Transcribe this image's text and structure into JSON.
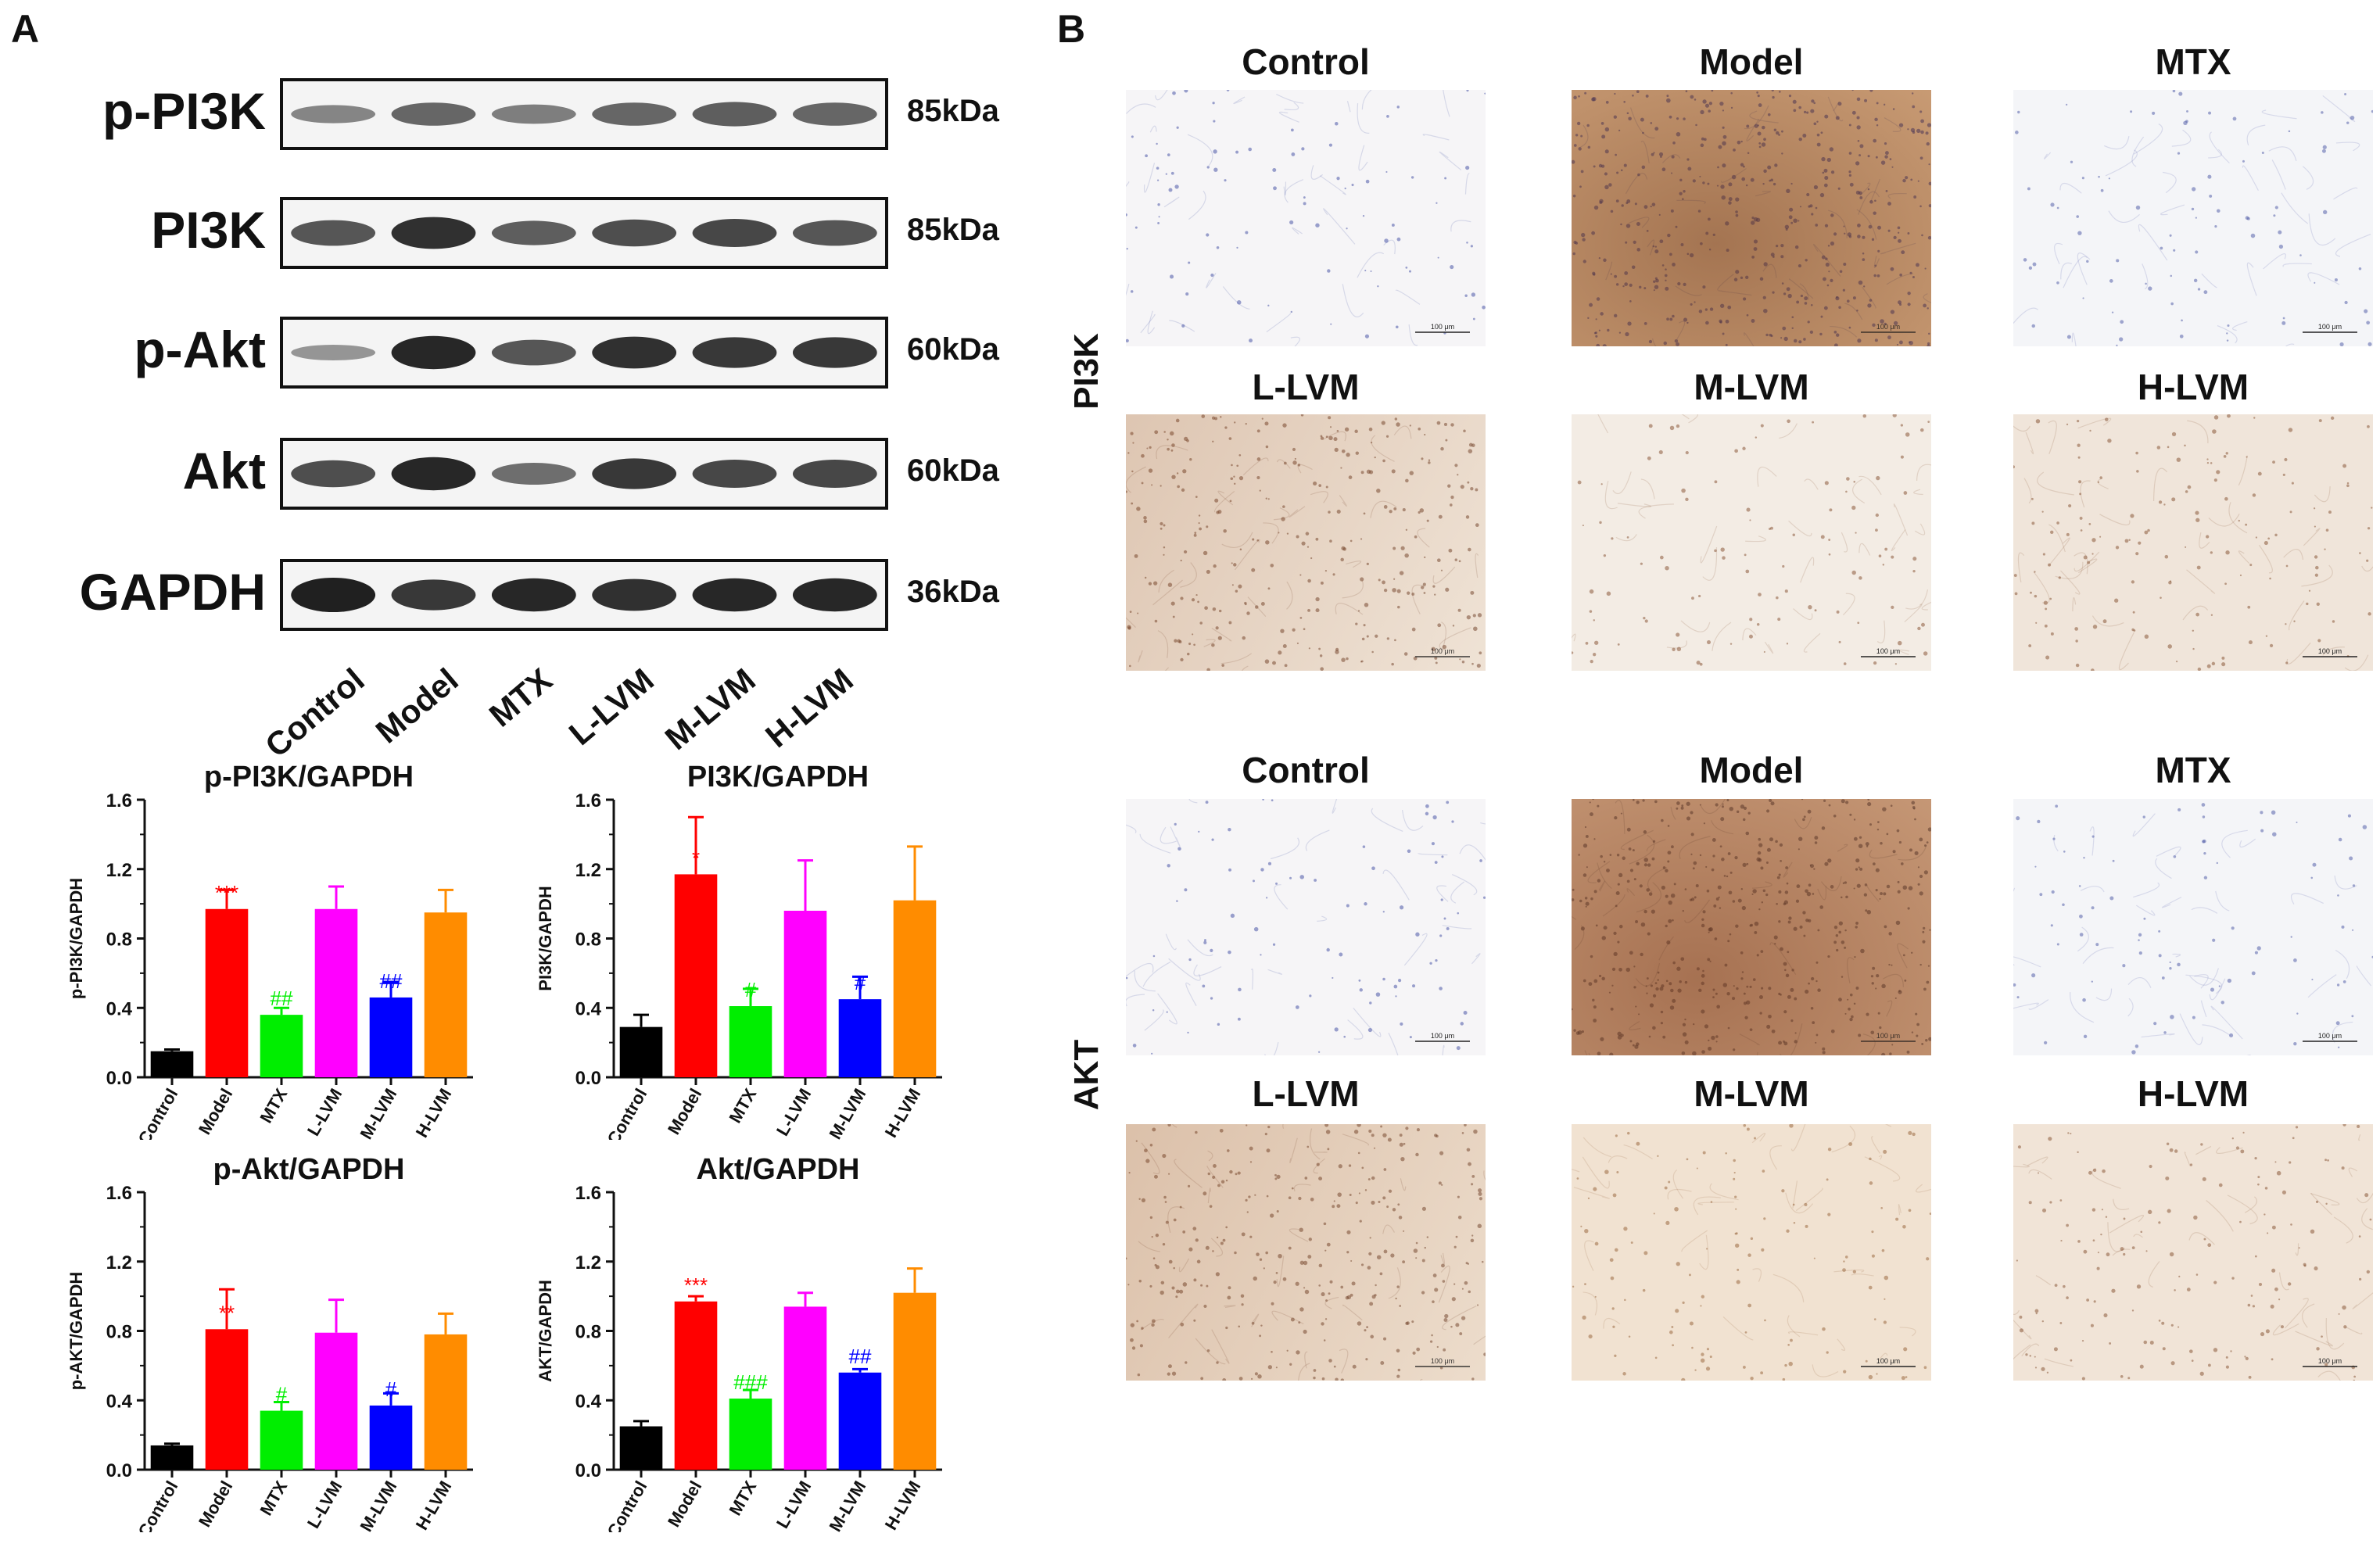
{
  "panel_a": {
    "letter": "A",
    "blots": [
      {
        "label": "p-PI3K",
        "kda": "85kDa",
        "intensity": [
          0.35,
          0.55,
          0.4,
          0.55,
          0.6,
          0.55
        ]
      },
      {
        "label": "PI3K",
        "kda": "85kDa",
        "intensity": [
          0.65,
          0.9,
          0.6,
          0.7,
          0.75,
          0.65
        ]
      },
      {
        "label": "p-Akt",
        "kda": "60kDa",
        "intensity": [
          0.25,
          0.95,
          0.65,
          0.9,
          0.85,
          0.85
        ]
      },
      {
        "label": "Akt",
        "kda": "60kDa",
        "intensity": [
          0.7,
          0.95,
          0.5,
          0.85,
          0.75,
          0.75
        ]
      },
      {
        "label": "GAPDH",
        "kda": "36kDa",
        "intensity": [
          1.0,
          0.85,
          0.95,
          0.9,
          0.95,
          0.95
        ]
      }
    ],
    "lanes": [
      "Control",
      "Model",
      "MTX",
      "L-LVM",
      "M-LVM",
      "H-LVM"
    ]
  },
  "panel_b": {
    "letter": "B",
    "sections": [
      {
        "side_label": "PI3K",
        "top_titles": [
          "Control",
          "Model",
          "MTX"
        ],
        "bottom_titles": [
          "L-LVM",
          "M-LVM",
          "H-LVM"
        ]
      },
      {
        "side_label": "AKT",
        "top_titles": [
          "Control",
          "Model",
          "MTX"
        ],
        "bottom_titles": [
          "L-LVM",
          "M-LVM",
          "H-LVM"
        ]
      }
    ],
    "scale_bar": "100 μm"
  },
  "chart_data": [
    {
      "type": "bar",
      "title": "p-PI3K/GAPDH",
      "ylabel": "p-PI3K/GAPDH",
      "ylim": [
        0,
        1.6
      ],
      "yticks": [
        "0.0",
        "0.4",
        "0.8",
        "1.2",
        "1.6"
      ],
      "categories": [
        "Control",
        "Model",
        "MTX",
        "L-LVM",
        "M-LVM",
        "H-LVM"
      ],
      "values": [
        0.15,
        0.97,
        0.36,
        0.97,
        0.46,
        0.95
      ],
      "errors": [
        0.01,
        0.11,
        0.04,
        0.13,
        0.09,
        0.13
      ],
      "colors": [
        "#000000",
        "#ff0000",
        "#00ee00",
        "#ff00ff",
        "#0000ff",
        "#ff8c00"
      ],
      "annotations": [
        "",
        "***",
        "##",
        "",
        "##",
        ""
      ],
      "annotation_colors": [
        "",
        "#ff0000",
        "#00ee00",
        "",
        "#0000ff",
        ""
      ]
    },
    {
      "type": "bar",
      "title": "PI3K/GAPDH",
      "ylabel": "PI3K/GAPDH",
      "ylim": [
        0,
        1.6
      ],
      "yticks": [
        "0.0",
        "0.4",
        "0.8",
        "1.2",
        "1.6"
      ],
      "categories": [
        "Control",
        "Model",
        "MTX",
        "L-LVM",
        "M-LVM",
        "H-LVM"
      ],
      "values": [
        0.29,
        1.17,
        0.41,
        0.96,
        0.45,
        1.02
      ],
      "errors": [
        0.07,
        0.33,
        0.1,
        0.29,
        0.13,
        0.31
      ],
      "colors": [
        "#000000",
        "#ff0000",
        "#00ee00",
        "#ff00ff",
        "#0000ff",
        "#ff8c00"
      ],
      "annotations": [
        "",
        "*",
        "#",
        "",
        "#",
        ""
      ],
      "annotation_colors": [
        "",
        "#ff0000",
        "#00ee00",
        "",
        "#0000ff",
        ""
      ]
    },
    {
      "type": "bar",
      "title": "p-Akt/GAPDH",
      "ylabel": "p-AKT/GAPDH",
      "ylim": [
        0,
        1.6
      ],
      "yticks": [
        "0.0",
        "0.4",
        "0.8",
        "1.2",
        "1.6"
      ],
      "categories": [
        "Control",
        "Model",
        "MTX",
        "L-LVM",
        "M-LVM",
        "H-LVM"
      ],
      "values": [
        0.14,
        0.81,
        0.34,
        0.79,
        0.37,
        0.78
      ],
      "errors": [
        0.01,
        0.23,
        0.05,
        0.19,
        0.07,
        0.12
      ],
      "colors": [
        "#000000",
        "#ff0000",
        "#00ee00",
        "#ff00ff",
        "#0000ff",
        "#ff8c00"
      ],
      "annotations": [
        "",
        "**",
        "#",
        "",
        "#",
        ""
      ],
      "annotation_colors": [
        "",
        "#ff0000",
        "#00ee00",
        "",
        "#0000ff",
        ""
      ]
    },
    {
      "type": "bar",
      "title": "Akt/GAPDH",
      "ylabel": "AKT/GAPDH",
      "ylim": [
        0,
        1.6
      ],
      "yticks": [
        "0.0",
        "0.4",
        "0.8",
        "1.2",
        "1.6"
      ],
      "categories": [
        "Control",
        "Model",
        "MTX",
        "L-LVM",
        "M-LVM",
        "H-LVM"
      ],
      "values": [
        0.25,
        0.97,
        0.41,
        0.94,
        0.56,
        1.02
      ],
      "errors": [
        0.03,
        0.03,
        0.05,
        0.08,
        0.02,
        0.14
      ],
      "colors": [
        "#000000",
        "#ff0000",
        "#00ee00",
        "#ff00ff",
        "#0000ff",
        "#ff8c00"
      ],
      "annotations": [
        "",
        "***",
        "###",
        "",
        "##",
        ""
      ],
      "annotation_colors": [
        "",
        "#ff0000",
        "#00ee00",
        "",
        "#0000ff",
        ""
      ]
    }
  ]
}
